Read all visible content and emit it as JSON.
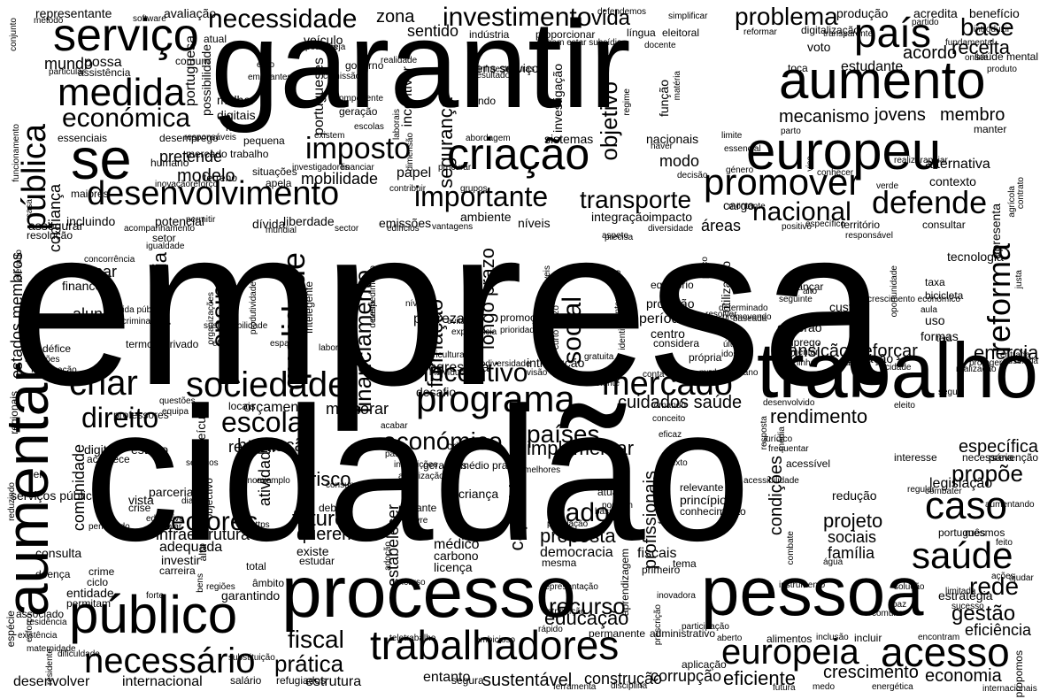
{
  "colors": {
    "background": "#ffffff",
    "text": "#000000"
  },
  "words": [
    "empresa",
    "cidadão",
    "garantir",
    "trabalho",
    "processo",
    "pessoa",
    "europeu",
    "aumento",
    "aumentar",
    "público",
    "serviço",
    "medida",
    "se",
    "criação",
    "desenvolvimento",
    "trabalhadores",
    "sociedade",
    "programa",
    "criar",
    "mercado",
    "necessário",
    "acesso",
    "europeia",
    "saúde",
    "caso",
    "país",
    "promover",
    "imposto",
    "defende",
    "nacional",
    "importante",
    "transporte",
    "direito",
    "escola",
    "económico",
    "económica",
    "necessidade",
    "investimento",
    "problema",
    "base",
    "receita",
    "acordo",
    "mundo",
    "pública",
    "reforma",
    "social",
    "qualidade",
    "ensino",
    "financiamento",
    "incentivo",
    "longo prazo",
    "formação",
    "sectores",
    "infraestrutura",
    "futuro",
    "queremos",
    "dado",
    "proposta",
    "educação",
    "recurso",
    "fiscal",
    "prática",
    "gestão",
    "rede",
    "propõe",
    "projeto",
    "sociais",
    "família",
    "eficiência",
    "crescimento",
    "economia",
    "eficiente",
    "sustentável",
    "construção",
    "corrupção",
    "entanto",
    "rendimento",
    "energia",
    "transição",
    "reforçar",
    "cuidados saúde",
    "países",
    "implementar",
    "habitação",
    "reduzir",
    "orçamento",
    "melhorar",
    "vida",
    "zona",
    "sentido",
    "objetivo",
    "segurança",
    "incentivar",
    "jovens",
    "membro",
    "mecanismo",
    "estudante",
    "alternativa",
    "contexto",
    "modelo",
    "pretende",
    "mobilidade",
    "papel",
    "modo",
    "cargo",
    "competência",
    "aluno",
    "tornar",
    "financeira",
    "estados membros",
    "comunidade",
    "atividade",
    "risco",
    "debate",
    "criança",
    "capacidade",
    "médico",
    "carbono",
    "licença",
    "profissionais",
    "condições",
    "legislação",
    "português",
    "mesmos",
    "estratégia",
    "princípio",
    "redução",
    "fiscais",
    "tema",
    "garantindo",
    "âmbito",
    "internacional",
    "salário",
    "estrutura",
    "refugiados",
    "desenvolver",
    "segura",
    "avaliação",
    "representante",
    "benefício",
    "acredita",
    "produção",
    "digitalização",
    "reformar",
    "portuguesa",
    "possibilidade",
    "governo",
    "melhor",
    "digitais",
    "mar",
    "portugueses",
    "investigação",
    "sistemas",
    "nacionais",
    "limite",
    "haver",
    "situações",
    "apela",
    "liberdade",
    "emissões",
    "ambiente",
    "níveis",
    "integração",
    "impacto",
    "áreas",
    "dívida",
    "incluindo",
    "potencial",
    "setor",
    "igualdade",
    "equilíbrio",
    "proteção",
    "período",
    "centro",
    "considera",
    "deverão",
    "emprego",
    "fomentar",
    "alcançar",
    "seguinte",
    "custo",
    "uso",
    "formas",
    "taxa",
    "bicicleta",
    "aula",
    "procura",
    "utilização",
    "oportunidade",
    "progressiva",
    "desafio",
    "introdução",
    "visão",
    "existente",
    "plano",
    "mudança",
    "própria",
    "situação",
    "linha",
    "valores",
    "realização",
    "proteger",
    "específica",
    "necessária",
    "prevenção",
    "interesse",
    "acessível",
    "combater",
    "combate",
    "conhecimento",
    "relevante",
    "atuais",
    "possam",
    "restante",
    "estabelecer",
    "população",
    "democracia",
    "mesma",
    "primeiro",
    "aprendizagem",
    "permanente",
    "administrativo",
    "aplicação",
    "total",
    "alta",
    "adequada",
    "investir",
    "carreira",
    "consulta",
    "crime",
    "ciclo",
    "doença",
    "entidade",
    "permitam",
    "associado",
    "espécie",
    "serviços público",
    "lei",
    "parceria",
    "vista",
    "crise",
    "acontece",
    "digital",
    "estudo",
    "professores",
    "veículo",
    "locais",
    "questões",
    "equipa",
    "regionais",
    "fiscalização",
    "défice",
    "soluções",
    "termo",
    "privado",
    "efeito",
    "espaço",
    "laboral",
    "indivíduo",
    "biodiversidade",
    "agricultura",
    "tomando",
    "conceito",
    "eficaz",
    "eleito",
    "veículo",
    "atual",
    "assistência",
    "comum",
    "possa",
    "particular",
    "desemprego",
    "essenciais",
    "humano",
    "mercado trabalho",
    "terreno",
    "inovação",
    "reforço",
    "maiores",
    "confiança",
    "casa",
    "assegurar",
    "acompanhamento",
    "permitir",
    "mundial",
    "resolução",
    "elevado",
    "existe",
    "estudar",
    "permitindo",
    "educativo",
    "escolar",
    "texto",
    "seguir",
    "regular",
    "frequentar",
    "jurídico",
    "resposta",
    "média",
    "montante",
    "positivo",
    "específico",
    "território",
    "consultar",
    "responsável",
    "tecnologia",
    "apresenta",
    "contrato",
    "agrícola",
    "apoiar",
    "realizar",
    "verde",
    "género",
    "decisão",
    "essencial",
    "parto",
    "manter",
    "fundamental",
    "saúde mental",
    "produto",
    "online",
    "introduzir",
    "toca",
    "voto",
    "transparente",
    "partido",
    "simplificar",
    "eleitoral",
    "língua",
    "função",
    "matéria",
    "regime",
    "bens serviços",
    "resultado",
    "fundo",
    "componente",
    "geração",
    "comissão",
    "euro",
    "emigrantes",
    "pequena",
    "método",
    "conjunto",
    "software",
    "indústria",
    "proporcionar",
    "bem estar subsídio",
    "defendemos",
    "docente",
    "poderes",
    "seja",
    "resolver",
    "baseada",
    "última",
    "idoso",
    "entrada",
    "ausência",
    "justa",
    "terá",
    "crescimento económico",
    "alto",
    "feito",
    "aumentando",
    "ajudar",
    "ações",
    "água",
    "solução",
    "sucesso",
    "limitada",
    "encontram",
    "incluir",
    "inclusão",
    "alimentos",
    "aberto",
    "instrumento",
    "ferramenta",
    "disciplina",
    "ambicioso",
    "teletrabalho",
    "rápido",
    "representação",
    "concurso",
    "adoção",
    "bens",
    "regiões",
    "forte",
    "esforço",
    "residente",
    "dificuldade",
    "maternidade",
    "substituição",
    "atribuição",
    "comuns",
    "paz",
    "futura",
    "medo",
    "energética",
    "internacionais",
    "propomos",
    "consumo",
    "médio prazo",
    "gerações",
    "instituições",
    "melhores",
    "passo",
    "acabar",
    "dia",
    "objectivo",
    "exemplo",
    "https",
    "livre",
    "criando",
    "básico",
    "fonte",
    "acessibilidade",
    "inovadora",
    "participação",
    "precisa",
    "sustentáveis",
    "nível",
    "pobreza",
    "evitar",
    "experiência",
    "promoção",
    "prioridade",
    "curto prazo",
    "gratuita",
    "conta",
    "promovendo",
    "determinado",
    "intervenção",
    "preço",
    "visa",
    "despedimento",
    "deverá",
    "intelegente",
    "independente",
    "organizações",
    "produtividade",
    "técnico",
    "dívida pública",
    "discriminação",
    "sustentabilidade",
    "concorrência",
    "investigadores",
    "financiar",
    "procurar",
    "grupos",
    "contribuir",
    "dimensão",
    "laborais",
    "responsáveis",
    "funcionamento",
    "abordagem",
    "vantagens",
    "edifícios",
    "sector",
    "diversidade",
    "reduzindo",
    "existência",
    "residência",
    "prescrição",
    "identificação",
    "serviços",
    "autonomia",
    "desenvolvido",
    "autorização",
    "aspeto",
    "infraestruturas",
    "realidade",
    "escolas",
    "existem",
    "conhecer",
    "cidade",
    "tratamento",
    "aposta",
    "oferta",
    "meios",
    "data",
    "gratuito"
  ]
}
